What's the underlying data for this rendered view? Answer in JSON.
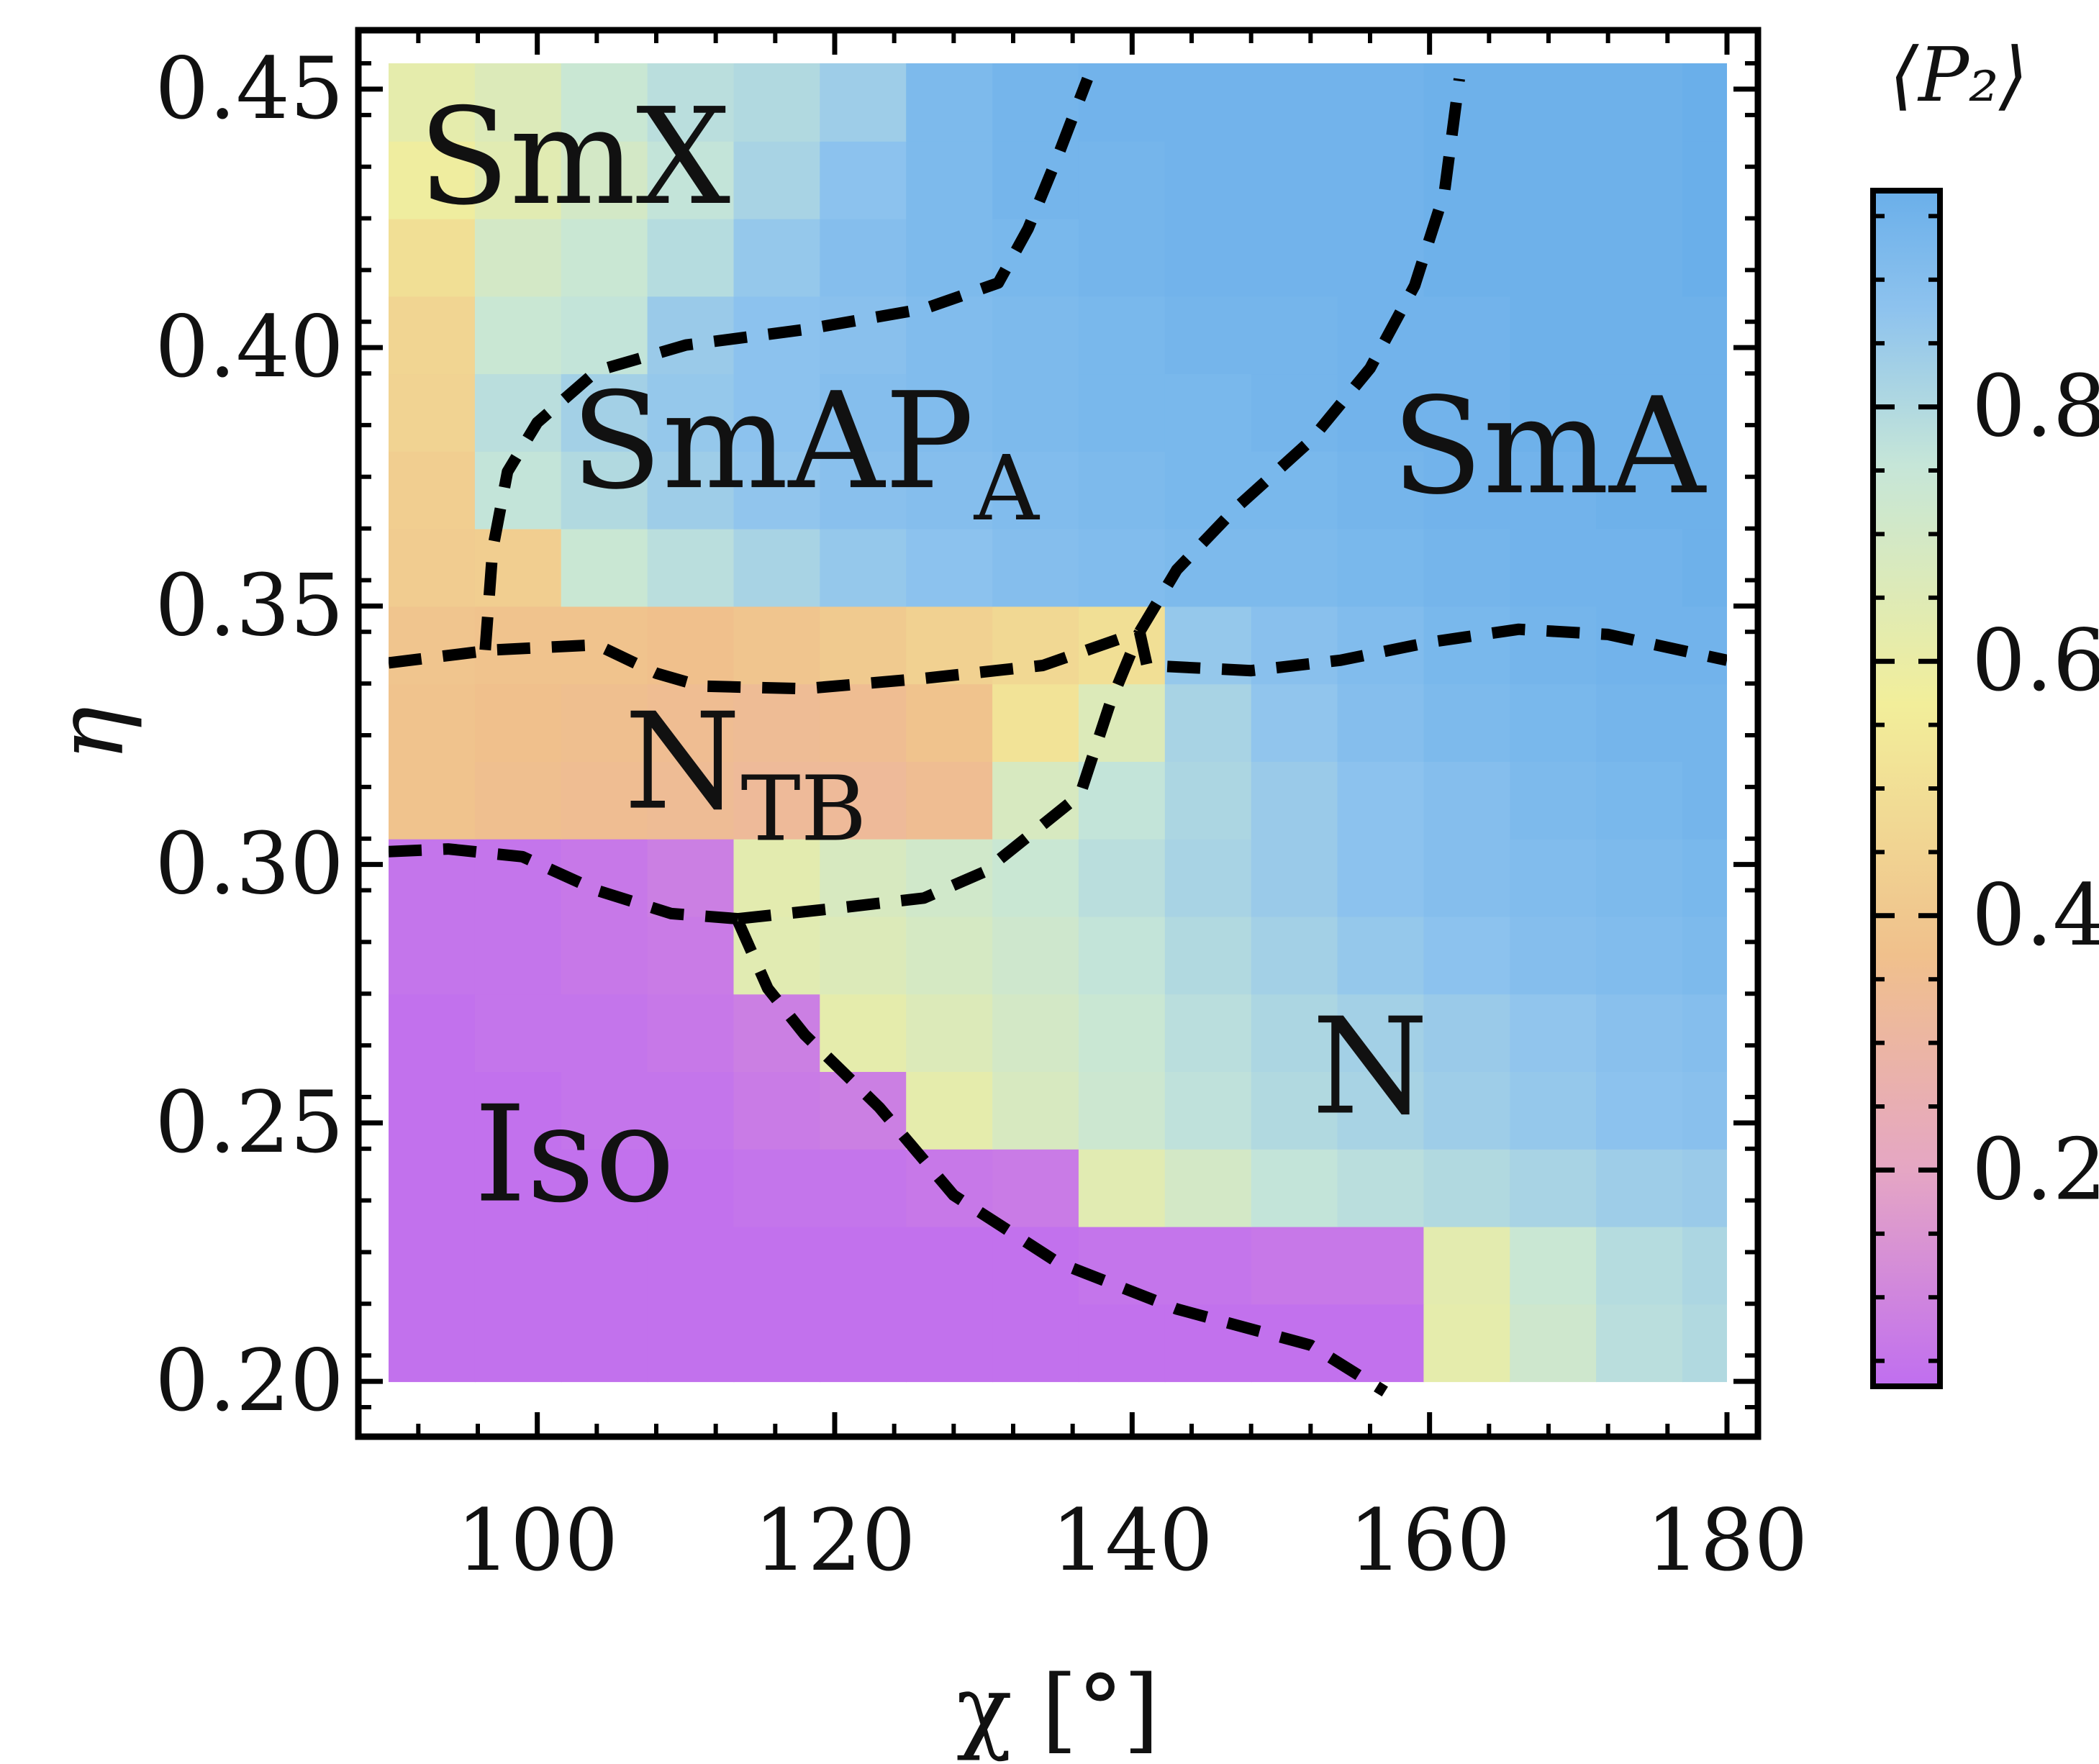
{
  "chart_data": {
    "type": "heatmap",
    "title": "",
    "xlabel": "χ [°]",
    "ylabel": "η",
    "xlim": [
      90,
      180
    ],
    "ylim": [
      0.195,
      0.455
    ],
    "x_ticks": [
      "100",
      "120",
      "140",
      "160",
      "180"
    ],
    "y_ticks": [
      "0.20",
      "0.25",
      "0.30",
      "0.35",
      "0.40",
      "0.45"
    ],
    "colorbar": {
      "title": "⟨P₂⟩",
      "range": [
        0.03,
        0.97
      ],
      "ticks": [
        "0.2",
        "0.4",
        "0.6",
        "0.8"
      ],
      "colors": [
        "#c06ef0",
        "#e5a6c4",
        "#f0c08c",
        "#f2ee9a",
        "#c6e6d8",
        "#8ec3ee",
        "#6aafea"
      ]
    },
    "chi_values": [
      90,
      95.8,
      101.6,
      107.4,
      113.2,
      119,
      124.8,
      130.6,
      136.4,
      142.2,
      148,
      153.8,
      159.6,
      165.4,
      171.2,
      177
    ],
    "eta_values": [
      0.2,
      0.215,
      0.23,
      0.245,
      0.26,
      0.275,
      0.29,
      0.305,
      0.32,
      0.335,
      0.35,
      0.365,
      0.38,
      0.395,
      0.41,
      0.425,
      0.44
    ],
    "p2_values": [
      [
        0.04,
        0.04,
        0.04,
        0.04,
        0.04,
        0.04,
        0.04,
        0.04,
        0.04,
        0.04,
        0.04,
        0.04,
        0.62,
        0.72,
        0.78,
        0.8
      ],
      [
        0.04,
        0.04,
        0.04,
        0.04,
        0.04,
        0.04,
        0.04,
        0.04,
        0.05,
        0.05,
        0.06,
        0.06,
        0.63,
        0.74,
        0.79,
        0.81
      ],
      [
        0.04,
        0.04,
        0.04,
        0.04,
        0.05,
        0.05,
        0.06,
        0.07,
        0.64,
        0.7,
        0.76,
        0.78,
        0.8,
        0.82,
        0.84,
        0.85
      ],
      [
        0.04,
        0.04,
        0.05,
        0.05,
        0.07,
        0.08,
        0.62,
        0.68,
        0.73,
        0.77,
        0.8,
        0.82,
        0.84,
        0.86,
        0.88,
        0.89
      ],
      [
        0.04,
        0.05,
        0.05,
        0.06,
        0.08,
        0.62,
        0.66,
        0.7,
        0.74,
        0.78,
        0.81,
        0.83,
        0.85,
        0.87,
        0.89,
        0.9
      ],
      [
        0.05,
        0.05,
        0.06,
        0.07,
        0.64,
        0.66,
        0.69,
        0.72,
        0.76,
        0.8,
        0.83,
        0.86,
        0.88,
        0.9,
        0.91,
        0.92
      ],
      [
        0.05,
        0.05,
        0.06,
        0.08,
        0.63,
        0.68,
        0.71,
        0.74,
        0.78,
        0.82,
        0.85,
        0.88,
        0.9,
        0.91,
        0.92,
        0.93
      ],
      [
        0.38,
        0.36,
        0.35,
        0.34,
        0.33,
        0.33,
        0.35,
        0.68,
        0.76,
        0.81,
        0.85,
        0.88,
        0.9,
        0.92,
        0.93,
        0.94
      ],
      [
        0.38,
        0.37,
        0.36,
        0.35,
        0.34,
        0.35,
        0.38,
        0.52,
        0.66,
        0.82,
        0.87,
        0.9,
        0.92,
        0.93,
        0.94,
        0.94
      ],
      [
        0.39,
        0.38,
        0.38,
        0.37,
        0.39,
        0.41,
        0.44,
        0.47,
        0.5,
        0.86,
        0.89,
        0.91,
        0.93,
        0.94,
        0.95,
        0.95
      ],
      [
        0.42,
        0.43,
        0.74,
        0.78,
        0.82,
        0.86,
        0.88,
        0.9,
        0.91,
        0.92,
        0.92,
        0.93,
        0.94,
        0.95,
        0.95,
        0.96
      ],
      [
        0.43,
        0.76,
        0.8,
        0.84,
        0.87,
        0.89,
        0.9,
        0.91,
        0.92,
        0.93,
        0.93,
        0.94,
        0.95,
        0.95,
        0.96,
        0.96
      ],
      [
        0.45,
        0.78,
        0.83,
        0.86,
        0.88,
        0.9,
        0.91,
        0.92,
        0.93,
        0.93,
        0.94,
        0.95,
        0.95,
        0.96,
        0.96,
        0.96
      ],
      [
        0.46,
        0.74,
        0.76,
        0.85,
        0.88,
        0.89,
        0.91,
        0.92,
        0.93,
        0.94,
        0.94,
        0.95,
        0.95,
        0.96,
        0.96,
        0.96
      ],
      [
        0.5,
        0.7,
        0.74,
        0.79,
        0.86,
        0.9,
        0.92,
        0.93,
        0.94,
        0.95,
        0.95,
        0.95,
        0.96,
        0.96,
        0.96,
        0.97
      ],
      [
        0.58,
        0.64,
        0.7,
        0.76,
        0.82,
        0.88,
        0.92,
        0.94,
        0.94,
        0.95,
        0.95,
        0.95,
        0.96,
        0.96,
        0.96,
        0.97
      ],
      [
        0.62,
        0.66,
        0.74,
        0.78,
        0.8,
        0.84,
        0.92,
        0.94,
        0.95,
        0.95,
        0.95,
        0.95,
        0.96,
        0.96,
        0.96,
        0.97
      ]
    ],
    "boundaries": [
      {
        "name": "Iso/nematic boundary",
        "points": [
          [
            113.5,
            0.289
          ],
          [
            115.5,
            0.276
          ],
          [
            118,
            0.267
          ],
          [
            123,
            0.253
          ],
          [
            128,
            0.236
          ],
          [
            135,
            0.223
          ],
          [
            143,
            0.214
          ],
          [
            152,
            0.207
          ],
          [
            157,
            0.198
          ]
        ]
      },
      {
        "name": "Iso/NTB boundary",
        "points": [
          [
            90,
            0.3025
          ],
          [
            94,
            0.303
          ],
          [
            99,
            0.3015
          ],
          [
            104,
            0.295
          ],
          [
            109,
            0.2905
          ],
          [
            113.5,
            0.2895
          ]
        ]
      },
      {
        "name": "NTB/N boundary",
        "points": [
          [
            113.5,
            0.2895
          ],
          [
            120,
            0.2915
          ],
          [
            126,
            0.2935
          ],
          [
            130,
            0.2985
          ],
          [
            136.5,
            0.3135
          ],
          [
            138.5,
            0.331
          ],
          [
            140.5,
            0.345
          ]
        ]
      },
      {
        "name": "NTB/SmAPA boundary",
        "points": [
          [
            90,
            0.339
          ],
          [
            97,
            0.3415
          ],
          [
            104,
            0.3425
          ],
          [
            108,
            0.337
          ],
          [
            111,
            0.3345
          ],
          [
            118,
            0.334
          ],
          [
            126,
            0.336
          ],
          [
            134,
            0.3385
          ],
          [
            140.5,
            0.345
          ]
        ]
      },
      {
        "name": "SmA/N boundary",
        "points": [
          [
            140.5,
            0.345
          ],
          [
            141,
            0.3385
          ],
          [
            148,
            0.3375
          ],
          [
            154,
            0.3395
          ],
          [
            160,
            0.343
          ],
          [
            166,
            0.3455
          ],
          [
            172,
            0.3445
          ],
          [
            180,
            0.3395
          ]
        ]
      },
      {
        "name": "SmAPA/SmA boundary",
        "points": [
          [
            140.5,
            0.345
          ],
          [
            143,
            0.357
          ],
          [
            147,
            0.369
          ],
          [
            152,
            0.382
          ],
          [
            156,
            0.396
          ],
          [
            159,
            0.412
          ],
          [
            161,
            0.43
          ],
          [
            162,
            0.452
          ]
        ]
      },
      {
        "name": "SmX/SmAPA boundary",
        "points": [
          [
            96.5,
            0.3415
          ],
          [
            97,
            0.361
          ],
          [
            98,
            0.376
          ],
          [
            100,
            0.3855
          ],
          [
            104,
            0.3955
          ],
          [
            110,
            0.4005
          ],
          [
            118,
            0.4035
          ],
          [
            126,
            0.4075
          ],
          [
            131,
            0.4125
          ],
          [
            133,
            0.423
          ],
          [
            135,
            0.437
          ],
          [
            137,
            0.452
          ]
        ]
      }
    ],
    "phase_labels": [
      {
        "text": "SmX",
        "chi": 102.5,
        "eta": 0.428
      },
      {
        "text": "SmAP",
        "sub": "A",
        "chi": 118,
        "eta": 0.373
      },
      {
        "text": "SmA",
        "chi": 168,
        "eta": 0.372
      },
      {
        "text": "N",
        "sub": "TB",
        "chi": 114,
        "eta": 0.311
      },
      {
        "text": "N",
        "chi": 156,
        "eta": 0.252
      },
      {
        "text": "Iso",
        "chi": 102.5,
        "eta": 0.235
      }
    ]
  }
}
